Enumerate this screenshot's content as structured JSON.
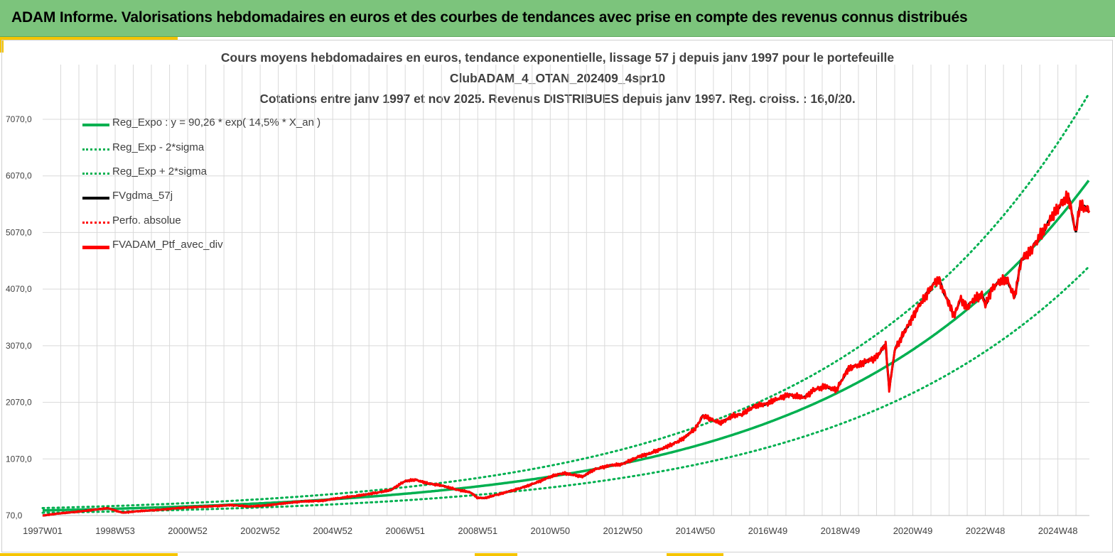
{
  "banner": {
    "title": "ADAM Informe. Valorisations hebdomadaires en euros et des courbes de tendances avec prise en compte des revenus connus distribués"
  },
  "colors": {
    "banner_bg": "#7cc47c",
    "accent": "#f5c400",
    "reg_expo": "#00b050",
    "fvgdma": "#000000",
    "ptf": "#ff0000",
    "grid": "#d9d9d9",
    "text": "#404040"
  },
  "chart_data": {
    "type": "line",
    "title_lines": [
      "Cours moyens hebdomadaires  en euros, tendance exponentielle, lissage 57 j depuis janv 1997 pour le portefeuille",
      "ClubADAM_4_OTAN_202409_4spr10",
      "Cotations  entre janv 1997 et nov 2025. Revenus DISTRIBUES depuis janv 1997. Reg. croiss. : 16,0/20."
    ],
    "x_range_years": [
      1997.0,
      2025.87
    ],
    "x_ticks": [
      {
        "label": "1997W01",
        "year": 1997.0
      },
      {
        "label": "1998W53",
        "year": 1999.0
      },
      {
        "label": "2000W52",
        "year": 2001.0
      },
      {
        "label": "2002W52",
        "year": 2003.0
      },
      {
        "label": "2004W52",
        "year": 2005.0
      },
      {
        "label": "2006W51",
        "year": 2007.0
      },
      {
        "label": "2008W51",
        "year": 2009.0
      },
      {
        "label": "2010W50",
        "year": 2011.0
      },
      {
        "label": "2012W50",
        "year": 2013.0
      },
      {
        "label": "2014W50",
        "year": 2015.0
      },
      {
        "label": "2016W49",
        "year": 2017.0
      },
      {
        "label": "2018W49",
        "year": 2019.0
      },
      {
        "label": "2020W49",
        "year": 2021.0
      },
      {
        "label": "2022W48",
        "year": 2023.0
      },
      {
        "label": "2024W48",
        "year": 2025.0
      }
    ],
    "y_ticks": [
      {
        "label": "70,0",
        "value": 70
      },
      {
        "label": "1070,0",
        "value": 1070
      },
      {
        "label": "2070,0",
        "value": 2070
      },
      {
        "label": "3070,0",
        "value": 3070
      },
      {
        "label": "4070,0",
        "value": 4070
      },
      {
        "label": "5070,0",
        "value": 5070
      },
      {
        "label": "6070,0",
        "value": 6070
      },
      {
        "label": "7070,0",
        "value": 7070
      }
    ],
    "ylim": [
      70,
      7800
    ],
    "regression": {
      "a": 90.26,
      "rate": 0.145,
      "y_offset": 70,
      "sigma_factor": 0.255
    },
    "series": [
      {
        "name": "Reg_Expo : y = 90,26 * exp( 14,5% *  X_an )",
        "style": "solid-green",
        "kind": "regression"
      },
      {
        "name": "Reg_Exp - 2*sigma",
        "style": "dotted-green",
        "kind": "lower"
      },
      {
        "name": "Reg_Exp + 2*sigma",
        "style": "dotted-green",
        "kind": "upper"
      },
      {
        "name": "FVgdma_57j",
        "style": "solid-black",
        "kind": "smoothed"
      },
      {
        "name": "Perfo. absolue",
        "style": "dotted-red",
        "kind": "none"
      },
      {
        "name": "FVADAM_Ptf_avec_div",
        "style": "solid-red",
        "kind": "portfolio",
        "x": [
          1997.0,
          1997.5,
          1998.0,
          1998.4,
          1998.8,
          1999.2,
          1999.7,
          2000.2,
          2000.7,
          2001.2,
          2001.7,
          2002.2,
          2002.7,
          2003.2,
          2003.7,
          2004.2,
          2004.7,
          2005.2,
          2005.7,
          2006.2,
          2006.6,
          2007.0,
          2007.3,
          2007.6,
          2008.0,
          2008.4,
          2008.8,
          2009.0,
          2009.2,
          2009.6,
          2010.0,
          2010.4,
          2010.8,
          2011.1,
          2011.4,
          2011.6,
          2011.9,
          2012.2,
          2012.6,
          2013.0,
          2013.4,
          2013.8,
          2014.2,
          2014.6,
          2015.0,
          2015.2,
          2015.4,
          2015.7,
          2016.0,
          2016.3,
          2016.6,
          2017.0,
          2017.3,
          2017.6,
          2018.0,
          2018.3,
          2018.6,
          2018.9,
          2019.2,
          2019.6,
          2020.0,
          2020.25,
          2020.35,
          2020.5,
          2020.8,
          2021.1,
          2021.4,
          2021.7,
          2022.0,
          2022.15,
          2022.3,
          2022.5,
          2022.7,
          2022.9,
          2023.0,
          2023.2,
          2023.4,
          2023.6,
          2023.8,
          2024.0,
          2024.2,
          2024.5,
          2024.8,
          2025.1,
          2025.3,
          2025.5,
          2025.6,
          2025.87
        ],
        "y": [
          70,
          110,
          140,
          170,
          200,
          120,
          150,
          170,
          200,
          220,
          235,
          255,
          230,
          250,
          290,
          320,
          330,
          380,
          420,
          470,
          520,
          680,
          700,
          640,
          600,
          530,
          480,
          380,
          380,
          450,
          520,
          600,
          700,
          780,
          820,
          790,
          760,
          880,
          950,
          980,
          1100,
          1180,
          1280,
          1400,
          1600,
          1830,
          1780,
          1700,
          1820,
          1860,
          1990,
          2050,
          2140,
          2200,
          2150,
          2300,
          2350,
          2290,
          2650,
          2760,
          2870,
          3100,
          2280,
          3000,
          3350,
          3700,
          4000,
          4260,
          3800,
          3600,
          3900,
          3750,
          3900,
          3980,
          3780,
          4100,
          4200,
          4250,
          3920,
          4600,
          4700,
          5000,
          5300,
          5600,
          5680,
          5060,
          5540,
          5470
        ]
      }
    ]
  }
}
